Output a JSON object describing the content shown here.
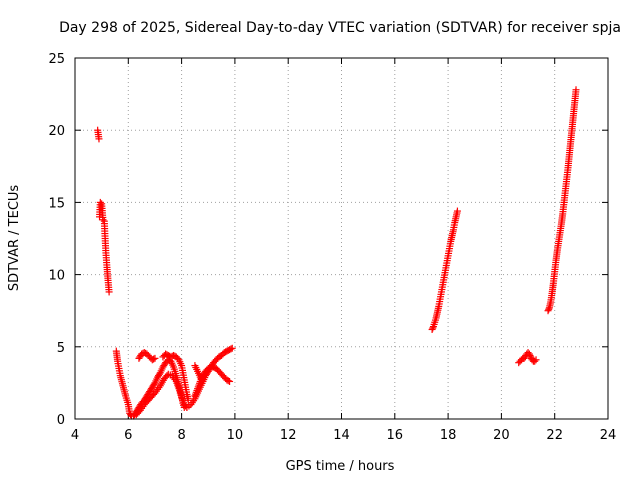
{
  "chart_data": {
    "type": "scatter",
    "title": "Day 298 of 2025, Sidereal Day-to-day VTEC variation (SDTVAR) for receiver spja",
    "xlabel": "GPS time / hours",
    "ylabel": "SDTVAR / TECUs",
    "xlim": [
      4,
      24
    ],
    "ylim": [
      0,
      25
    ],
    "xticks": [
      4,
      6,
      8,
      10,
      12,
      14,
      16,
      18,
      20,
      22,
      24
    ],
    "yticks": [
      0,
      5,
      10,
      15,
      20,
      25
    ],
    "grid": true,
    "marker": "plus",
    "color": "#ff0000",
    "series": [
      {
        "name": "SDTVAR",
        "segments": [
          [
            [
              4.85,
              20.0
            ],
            [
              4.9,
              19.4
            ]
          ],
          [
            [
              4.92,
              14.0
            ],
            [
              4.95,
              15.0
            ],
            [
              5.0,
              14.9
            ],
            [
              5.05,
              13.8
            ],
            [
              5.1,
              13.7
            ],
            [
              5.13,
              12.5
            ],
            [
              5.16,
              11.5
            ],
            [
              5.2,
              10.5
            ],
            [
              5.24,
              9.6
            ],
            [
              5.28,
              8.8
            ]
          ],
          [
            [
              5.55,
              4.7
            ],
            [
              5.6,
              4.0
            ],
            [
              5.7,
              3.0
            ],
            [
              5.8,
              2.3
            ],
            [
              5.9,
              1.6
            ],
            [
              6.0,
              1.0
            ],
            [
              6.05,
              0.4
            ],
            [
              6.12,
              0.2
            ],
            [
              6.2,
              0.2
            ],
            [
              6.3,
              0.5
            ],
            [
              6.4,
              0.8
            ],
            [
              6.5,
              1.1
            ],
            [
              6.6,
              1.3
            ],
            [
              6.7,
              1.6
            ],
            [
              6.8,
              1.9
            ],
            [
              6.9,
              2.2
            ],
            [
              7.0,
              2.5
            ],
            [
              7.1,
              2.9
            ],
            [
              7.2,
              3.2
            ],
            [
              7.3,
              3.6
            ],
            [
              7.4,
              3.9
            ],
            [
              7.5,
              4.1
            ],
            [
              7.6,
              4.0
            ],
            [
              7.7,
              3.6
            ],
            [
              7.8,
              3.0
            ],
            [
              7.9,
              2.3
            ],
            [
              8.0,
              1.6
            ],
            [
              8.05,
              1.1
            ],
            [
              8.1,
              0.8
            ]
          ],
          [
            [
              6.4,
              4.2
            ],
            [
              6.5,
              4.5
            ],
            [
              6.6,
              4.6
            ],
            [
              6.7,
              4.5
            ],
            [
              6.8,
              4.3
            ],
            [
              6.9,
              4.1
            ],
            [
              7.0,
              4.2
            ]
          ],
          [
            [
              6.3,
              0.3
            ],
            [
              6.45,
              0.6
            ],
            [
              6.6,
              1.0
            ],
            [
              6.8,
              1.4
            ],
            [
              7.0,
              1.8
            ],
            [
              7.2,
              2.3
            ],
            [
              7.35,
              2.8
            ],
            [
              7.5,
              3.1
            ],
            [
              7.65,
              3.0
            ],
            [
              7.8,
              2.6
            ],
            [
              7.9,
              2.1
            ],
            [
              8.0,
              1.5
            ],
            [
              8.1,
              1.0
            ],
            [
              8.2,
              0.8
            ]
          ],
          [
            [
              7.3,
              4.3
            ],
            [
              7.4,
              4.5
            ],
            [
              7.5,
              4.4
            ],
            [
              7.6,
              4.3
            ],
            [
              7.7,
              4.4
            ],
            [
              7.8,
              4.3
            ],
            [
              7.9,
              4.1
            ],
            [
              8.0,
              3.7
            ],
            [
              8.05,
              3.2
            ],
            [
              8.1,
              2.7
            ],
            [
              8.15,
              2.2
            ],
            [
              8.2,
              1.7
            ],
            [
              8.25,
              1.3
            ]
          ],
          [
            [
              8.2,
              0.8
            ],
            [
              8.35,
              1.0
            ],
            [
              8.5,
              1.4
            ],
            [
              8.6,
              1.8
            ],
            [
              8.7,
              2.2
            ],
            [
              8.8,
              2.6
            ],
            [
              8.9,
              3.0
            ],
            [
              9.0,
              3.3
            ],
            [
              9.1,
              3.6
            ],
            [
              9.2,
              3.9
            ],
            [
              9.3,
              4.1
            ],
            [
              9.4,
              4.3
            ],
            [
              9.5,
              4.4
            ],
            [
              9.6,
              4.6
            ],
            [
              9.7,
              4.7
            ],
            [
              9.8,
              4.8
            ],
            [
              9.9,
              4.9
            ]
          ],
          [
            [
              8.5,
              1.6
            ],
            [
              8.6,
              2.1
            ],
            [
              8.7,
              2.6
            ],
            [
              8.8,
              3.0
            ],
            [
              8.9,
              3.3
            ],
            [
              9.0,
              3.5
            ],
            [
              9.1,
              3.6
            ],
            [
              9.2,
              3.6
            ],
            [
              9.3,
              3.5
            ],
            [
              9.4,
              3.3
            ],
            [
              9.5,
              3.1
            ],
            [
              9.6,
              2.9
            ],
            [
              9.7,
              2.7
            ],
            [
              9.8,
              2.6
            ]
          ],
          [
            [
              8.5,
              3.7
            ],
            [
              8.6,
              3.3
            ],
            [
              8.7,
              2.9
            ],
            [
              8.8,
              2.6
            ]
          ],
          [
            [
              17.4,
              6.2
            ],
            [
              17.45,
              6.4
            ],
            [
              17.5,
              6.7
            ],
            [
              17.55,
              7.0
            ],
            [
              17.6,
              7.4
            ],
            [
              17.65,
              7.8
            ],
            [
              17.7,
              8.3
            ],
            [
              17.75,
              8.8
            ],
            [
              17.8,
              9.3
            ],
            [
              17.85,
              9.8
            ],
            [
              17.9,
              10.3
            ],
            [
              17.95,
              10.8
            ],
            [
              18.0,
              11.3
            ],
            [
              18.05,
              11.8
            ],
            [
              18.1,
              12.3
            ],
            [
              18.15,
              12.7
            ],
            [
              18.2,
              13.1
            ],
            [
              18.25,
              13.6
            ],
            [
              18.3,
              14.0
            ],
            [
              18.35,
              14.4
            ]
          ],
          [
            [
              20.65,
              3.9
            ],
            [
              20.7,
              4.0
            ],
            [
              20.75,
              4.1
            ],
            [
              20.8,
              4.2
            ],
            [
              20.85,
              4.2
            ],
            [
              20.9,
              4.3
            ],
            [
              20.95,
              4.5
            ],
            [
              21.0,
              4.6
            ],
            [
              21.05,
              4.5
            ],
            [
              21.1,
              4.3
            ],
            [
              21.15,
              4.1
            ],
            [
              21.2,
              4.0
            ],
            [
              21.25,
              4.0
            ],
            [
              21.3,
              4.1
            ]
          ],
          [
            [
              21.75,
              7.5
            ],
            [
              21.8,
              7.7
            ],
            [
              21.85,
              8.1
            ],
            [
              21.9,
              8.7
            ],
            [
              21.95,
              9.4
            ],
            [
              22.0,
              10.2
            ],
            [
              22.05,
              11.0
            ],
            [
              22.1,
              11.7
            ],
            [
              22.15,
              12.3
            ],
            [
              22.2,
              12.9
            ],
            [
              22.25,
              13.5
            ],
            [
              22.3,
              14.2
            ],
            [
              22.35,
              15.0
            ],
            [
              22.4,
              15.8
            ],
            [
              22.45,
              16.6
            ],
            [
              22.5,
              17.4
            ],
            [
              22.55,
              18.3
            ],
            [
              22.6,
              19.2
            ],
            [
              22.65,
              20.1
            ],
            [
              22.7,
              21.0
            ],
            [
              22.75,
              21.9
            ],
            [
              22.8,
              22.8
            ]
          ]
        ]
      }
    ]
  }
}
